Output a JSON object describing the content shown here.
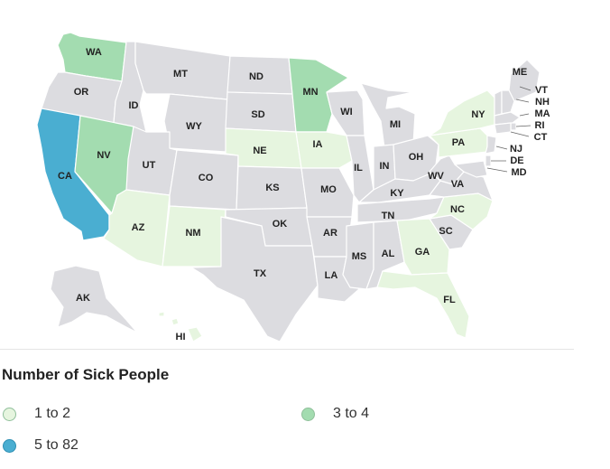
{
  "legend": {
    "title": "Number of Sick People",
    "items": [
      {
        "label": "1 to 2",
        "color": "#e6f5df"
      },
      {
        "label": "3 to 4",
        "color": "#a3dcb0"
      },
      {
        "label": "5 to 82",
        "color": "#4aaed1"
      }
    ]
  },
  "colors": {
    "no_data": "#dcdce0",
    "border": "#ffffff",
    "label": "#222222"
  },
  "states": [
    {
      "abbr": "WA",
      "bin": 1
    },
    {
      "abbr": "OR",
      "bin": -1
    },
    {
      "abbr": "CA",
      "bin": 2
    },
    {
      "abbr": "ID",
      "bin": -1
    },
    {
      "abbr": "NV",
      "bin": 1
    },
    {
      "abbr": "MT",
      "bin": -1
    },
    {
      "abbr": "WY",
      "bin": -1
    },
    {
      "abbr": "UT",
      "bin": -1
    },
    {
      "abbr": "AZ",
      "bin": 0
    },
    {
      "abbr": "CO",
      "bin": -1
    },
    {
      "abbr": "NM",
      "bin": 0
    },
    {
      "abbr": "ND",
      "bin": -1
    },
    {
      "abbr": "SD",
      "bin": -1
    },
    {
      "abbr": "NE",
      "bin": 0
    },
    {
      "abbr": "KS",
      "bin": -1
    },
    {
      "abbr": "OK",
      "bin": -1
    },
    {
      "abbr": "TX",
      "bin": -1
    },
    {
      "abbr": "MN",
      "bin": 1
    },
    {
      "abbr": "IA",
      "bin": 0
    },
    {
      "abbr": "MO",
      "bin": -1
    },
    {
      "abbr": "AR",
      "bin": -1
    },
    {
      "abbr": "LA",
      "bin": -1
    },
    {
      "abbr": "WI",
      "bin": -1
    },
    {
      "abbr": "IL",
      "bin": -1
    },
    {
      "abbr": "MI",
      "bin": -1
    },
    {
      "abbr": "IN",
      "bin": -1
    },
    {
      "abbr": "OH",
      "bin": -1
    },
    {
      "abbr": "KY",
      "bin": -1
    },
    {
      "abbr": "TN",
      "bin": -1
    },
    {
      "abbr": "MS",
      "bin": -1
    },
    {
      "abbr": "AL",
      "bin": -1
    },
    {
      "abbr": "GA",
      "bin": 0
    },
    {
      "abbr": "FL",
      "bin": 0
    },
    {
      "abbr": "SC",
      "bin": -1
    },
    {
      "abbr": "NC",
      "bin": 0
    },
    {
      "abbr": "VA",
      "bin": -1
    },
    {
      "abbr": "WV",
      "bin": -1
    },
    {
      "abbr": "PA",
      "bin": 0
    },
    {
      "abbr": "NY",
      "bin": 0
    },
    {
      "abbr": "ME",
      "bin": -1
    },
    {
      "abbr": "VT",
      "bin": -1
    },
    {
      "abbr": "NH",
      "bin": -1
    },
    {
      "abbr": "MA",
      "bin": -1
    },
    {
      "abbr": "RI",
      "bin": -1
    },
    {
      "abbr": "CT",
      "bin": -1
    },
    {
      "abbr": "NJ",
      "bin": -1
    },
    {
      "abbr": "DE",
      "bin": -1
    },
    {
      "abbr": "MD",
      "bin": -1
    },
    {
      "abbr": "AK",
      "bin": -1
    },
    {
      "abbr": "HI",
      "bin": 0
    }
  ]
}
